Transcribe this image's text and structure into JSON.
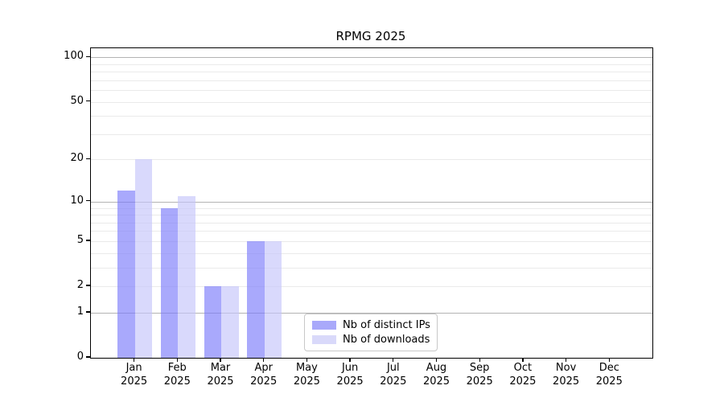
{
  "chart_data": {
    "type": "bar",
    "title": "RPMG 2025",
    "year": "2025",
    "categories": [
      "Jan",
      "Feb",
      "Mar",
      "Apr",
      "May",
      "Jun",
      "Jul",
      "Aug",
      "Sep",
      "Oct",
      "Nov",
      "Dec"
    ],
    "series": [
      {
        "name": "Nb of distinct IPs",
        "color": "#a9a9fa",
        "color_rgba": "rgba(123,123,250,0.65)",
        "values": [
          12,
          9,
          2,
          5,
          0,
          0,
          0,
          0,
          0,
          0,
          0,
          0
        ]
      },
      {
        "name": "Nb of downloads",
        "color": "#d9d9fa",
        "color_rgba": "rgba(197,197,250,0.65)",
        "values": [
          20,
          11,
          2,
          5,
          0,
          0,
          0,
          0,
          0,
          0,
          0,
          0
        ]
      }
    ],
    "yscale": "log1p",
    "ylim": [
      0,
      115
    ],
    "yticks": [
      100,
      50,
      20,
      10,
      5,
      2,
      1,
      0
    ],
    "major_gridlines": [
      1,
      10,
      100
    ],
    "minor_gridlines": [
      2,
      3,
      4,
      5,
      6,
      7,
      8,
      9,
      20,
      30,
      40,
      50,
      60,
      70,
      80,
      90
    ],
    "grid_color_major": "#b3b3b3",
    "grid_color_minor": "#eaeaea",
    "legend_position": "lower center"
  }
}
